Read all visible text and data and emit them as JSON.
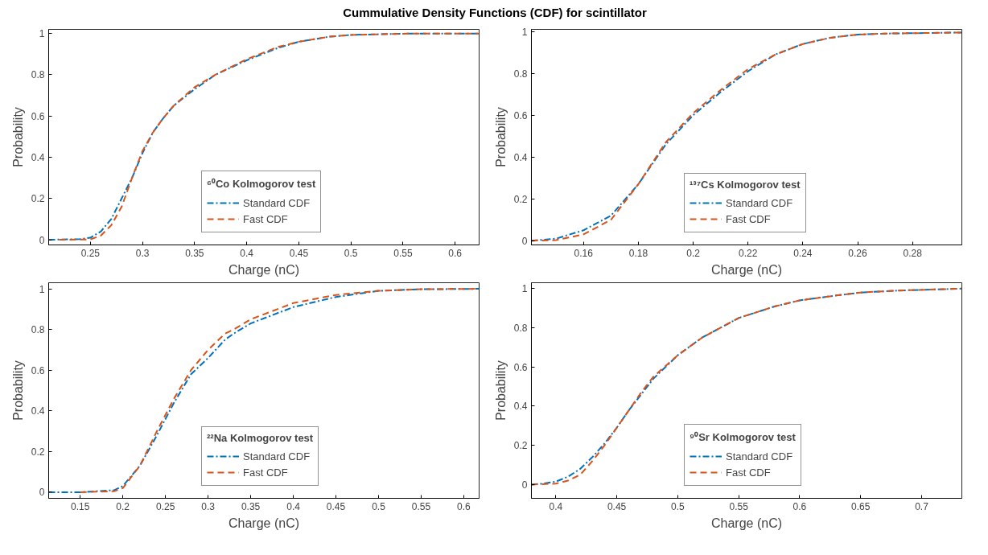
{
  "chart_data": [
    {
      "type": "line",
      "title": "Cummulative Density Functions (CDF) for scintillator",
      "xlabel": "Charge (nC)",
      "ylabel": "Probability",
      "legend_title": "⁶⁰Co Kolmogorov test",
      "legend": "bottom",
      "xlim": [
        0.21,
        0.623
      ],
      "ylim": [
        -0.025,
        1.02
      ],
      "xticks": [
        0.25,
        0.3,
        0.35,
        0.4,
        0.45,
        0.5,
        0.55,
        0.6
      ],
      "yticks": [
        0,
        0.2,
        0.4,
        0.6,
        0.8,
        1
      ],
      "series": [
        {
          "name": "Standard CDF",
          "color": "#0072bd",
          "line_style": "dashdot",
          "x": [
            0.21,
            0.24,
            0.25,
            0.26,
            0.27,
            0.28,
            0.29,
            0.3,
            0.31,
            0.32,
            0.33,
            0.35,
            0.37,
            0.4,
            0.43,
            0.45,
            0.48,
            0.5,
            0.55,
            0.623
          ],
          "values": [
            0,
            0.003,
            0.01,
            0.04,
            0.1,
            0.2,
            0.3,
            0.42,
            0.52,
            0.59,
            0.65,
            0.73,
            0.8,
            0.87,
            0.93,
            0.96,
            0.985,
            0.993,
            0.999,
            1
          ]
        },
        {
          "name": "Fast CDF",
          "color": "#d95319",
          "line_style": "dashed",
          "x": [
            0.22,
            0.25,
            0.26,
            0.27,
            0.28,
            0.29,
            0.3,
            0.31,
            0.32,
            0.33,
            0.35,
            0.37,
            0.4,
            0.43,
            0.45,
            0.48,
            0.5,
            0.55,
            0.623
          ],
          "values": [
            0,
            0.002,
            0.02,
            0.07,
            0.16,
            0.3,
            0.43,
            0.52,
            0.59,
            0.65,
            0.74,
            0.8,
            0.875,
            0.935,
            0.96,
            0.985,
            0.993,
            0.999,
            1
          ]
        }
      ]
    },
    {
      "type": "line",
      "xlabel": "Charge (nC)",
      "ylabel": "Probability",
      "legend_title": "¹³⁷Cs Kolmogorov test",
      "legend": "bottom",
      "xlim": [
        0.141,
        0.298
      ],
      "ylim": [
        -0.02,
        1.01
      ],
      "xticks": [
        0.16,
        0.18,
        0.2,
        0.22,
        0.24,
        0.26,
        0.28
      ],
      "yticks": [
        0,
        0.2,
        0.4,
        0.6,
        0.8,
        1
      ],
      "series": [
        {
          "name": "Standard CDF",
          "color": "#0072bd",
          "line_style": "dashdot",
          "x": [
            0.141,
            0.15,
            0.16,
            0.17,
            0.18,
            0.19,
            0.2,
            0.21,
            0.22,
            0.23,
            0.24,
            0.25,
            0.26,
            0.27,
            0.298
          ],
          "values": [
            0,
            0.01,
            0.05,
            0.12,
            0.27,
            0.46,
            0.6,
            0.71,
            0.81,
            0.89,
            0.94,
            0.97,
            0.985,
            0.99,
            0.995
          ]
        },
        {
          "name": "Fast CDF",
          "color": "#d95319",
          "line_style": "dashed",
          "x": [
            0.141,
            0.15,
            0.16,
            0.17,
            0.18,
            0.19,
            0.2,
            0.21,
            0.22,
            0.23,
            0.24,
            0.25,
            0.26,
            0.27,
            0.298
          ],
          "values": [
            0,
            0.003,
            0.03,
            0.1,
            0.27,
            0.47,
            0.61,
            0.72,
            0.82,
            0.89,
            0.94,
            0.97,
            0.985,
            0.99,
            0.995
          ]
        }
      ]
    },
    {
      "type": "line",
      "xlabel": "Charge (nC)",
      "ylabel": "Probability",
      "legend_title": "²²Na Kolmogorov test",
      "legend": "bottom",
      "xlim": [
        0.113,
        0.618
      ],
      "ylim": [
        -0.03,
        1.03
      ],
      "xticks": [
        0.15,
        0.2,
        0.25,
        0.3,
        0.35,
        0.4,
        0.45,
        0.5,
        0.55,
        0.6
      ],
      "yticks": [
        0,
        0.2,
        0.4,
        0.6,
        0.8,
        1
      ],
      "series": [
        {
          "name": "Standard CDF",
          "color": "#0072bd",
          "line_style": "dashdot",
          "x": [
            0.113,
            0.15,
            0.19,
            0.2,
            0.22,
            0.24,
            0.26,
            0.28,
            0.3,
            0.32,
            0.33,
            0.35,
            0.4,
            0.45,
            0.5,
            0.55,
            0.618
          ],
          "values": [
            0,
            0,
            0.01,
            0.03,
            0.13,
            0.28,
            0.44,
            0.58,
            0.66,
            0.75,
            0.78,
            0.83,
            0.91,
            0.96,
            0.99,
            0.998,
            1
          ]
        },
        {
          "name": "Fast CDF",
          "color": "#d95319",
          "line_style": "dashed",
          "x": [
            0.15,
            0.19,
            0.2,
            0.22,
            0.24,
            0.26,
            0.28,
            0.3,
            0.32,
            0.33,
            0.35,
            0.4,
            0.45,
            0.5,
            0.55,
            0.618
          ],
          "values": [
            0,
            0.005,
            0.02,
            0.13,
            0.3,
            0.46,
            0.6,
            0.7,
            0.78,
            0.8,
            0.85,
            0.93,
            0.97,
            0.99,
            0.998,
            1
          ]
        }
      ]
    },
    {
      "type": "line",
      "xlabel": "Charge (nC)",
      "ylabel": "Probability",
      "legend_title": "⁹⁰Sr Kolmogorov test",
      "legend": "bottom",
      "xlim": [
        0.38,
        0.733
      ],
      "ylim": [
        -0.07,
        1.03
      ],
      "xticks": [
        0.4,
        0.45,
        0.5,
        0.55,
        0.6,
        0.65,
        0.7
      ],
      "yticks": [
        0,
        0.2,
        0.4,
        0.6,
        0.8,
        1
      ],
      "series": [
        {
          "name": "Standard CDF",
          "color": "#0072bd",
          "line_style": "dashdot",
          "x": [
            0.38,
            0.39,
            0.4,
            0.41,
            0.42,
            0.43,
            0.44,
            0.45,
            0.46,
            0.47,
            0.48,
            0.5,
            0.52,
            0.55,
            0.58,
            0.6,
            0.63,
            0.65,
            0.68,
            0.733
          ],
          "values": [
            0,
            0.005,
            0.015,
            0.04,
            0.08,
            0.14,
            0.21,
            0.29,
            0.38,
            0.46,
            0.54,
            0.66,
            0.75,
            0.85,
            0.91,
            0.94,
            0.965,
            0.98,
            0.99,
            1
          ]
        },
        {
          "name": "Fast CDF",
          "color": "#d95319",
          "line_style": "dashed",
          "x": [
            0.38,
            0.4,
            0.41,
            0.42,
            0.43,
            0.44,
            0.45,
            0.46,
            0.47,
            0.48,
            0.5,
            0.52,
            0.55,
            0.58,
            0.6,
            0.63,
            0.65,
            0.68,
            0.733
          ],
          "values": [
            0,
            0.005,
            0.02,
            0.05,
            0.12,
            0.2,
            0.29,
            0.38,
            0.47,
            0.55,
            0.66,
            0.75,
            0.85,
            0.91,
            0.94,
            0.965,
            0.98,
            0.99,
            1
          ]
        }
      ]
    }
  ]
}
